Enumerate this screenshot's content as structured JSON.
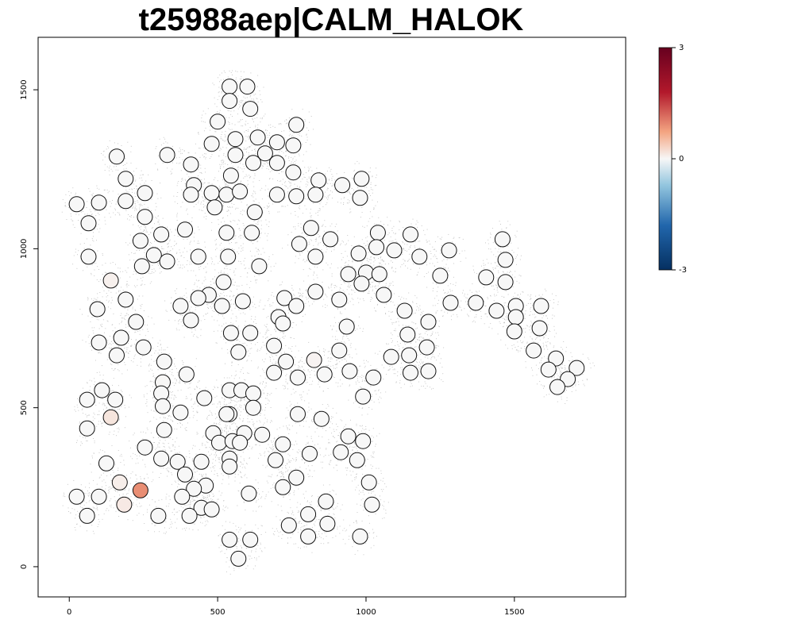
{
  "chart_data": {
    "type": "scatter",
    "title": "t25988aep|CALM_HALOK",
    "xlabel": "",
    "ylabel": "",
    "xlim": [
      -105,
      1875
    ],
    "ylim": [
      -95,
      1665
    ],
    "x_ticks": [
      0,
      500,
      1000,
      1500
    ],
    "y_ticks": [
      0,
      500,
      1000,
      1500
    ],
    "grid": false,
    "colorbar": {
      "min": -3,
      "max": 3,
      "ticks": [
        3,
        0,
        -3
      ],
      "low_color": "#053061",
      "mid_color": "#f7f7f7",
      "high_color": "#67001f",
      "placement": "right"
    },
    "background_points_color": "#c8c8c8",
    "spots": [
      [
        540,
        1510,
        0
      ],
      [
        600,
        1510,
        0
      ],
      [
        540,
        1465,
        0
      ],
      [
        610,
        1440,
        0
      ],
      [
        500,
        1400,
        0
      ],
      [
        765,
        1390,
        0
      ],
      [
        560,
        1345,
        0
      ],
      [
        635,
        1350,
        0
      ],
      [
        700,
        1335,
        0
      ],
      [
        755,
        1325,
        0
      ],
      [
        480,
        1330,
        0
      ],
      [
        330,
        1295,
        0
      ],
      [
        160,
        1290,
        0
      ],
      [
        560,
        1295,
        0
      ],
      [
        660,
        1300,
        0
      ],
      [
        620,
        1270,
        0
      ],
      [
        700,
        1270,
        0
      ],
      [
        410,
        1265,
        0
      ],
      [
        755,
        1240,
        0
      ],
      [
        545,
        1230,
        0
      ],
      [
        190,
        1220,
        0
      ],
      [
        840,
        1215,
        0
      ],
      [
        985,
        1220,
        0
      ],
      [
        420,
        1200,
        0
      ],
      [
        920,
        1200,
        0
      ],
      [
        255,
        1175,
        0
      ],
      [
        480,
        1175,
        0
      ],
      [
        530,
        1170,
        0
      ],
      [
        575,
        1180,
        0
      ],
      [
        700,
        1170,
        0
      ],
      [
        765,
        1165,
        0
      ],
      [
        830,
        1170,
        0
      ],
      [
        410,
        1170,
        0
      ],
      [
        980,
        1160,
        0
      ],
      [
        25,
        1140,
        0
      ],
      [
        100,
        1145,
        0
      ],
      [
        190,
        1150,
        0
      ],
      [
        490,
        1130,
        0
      ],
      [
        625,
        1115,
        0
      ],
      [
        255,
        1100,
        0
      ],
      [
        65,
        1080,
        0
      ],
      [
        390,
        1060,
        0
      ],
      [
        815,
        1065,
        0
      ],
      [
        310,
        1045,
        0
      ],
      [
        530,
        1050,
        0
      ],
      [
        615,
        1050,
        0
      ],
      [
        1040,
        1050,
        0
      ],
      [
        1460,
        1030,
        0
      ],
      [
        880,
        1030,
        0
      ],
      [
        1150,
        1045,
        0
      ],
      [
        240,
        1025,
        0
      ],
      [
        775,
        1015,
        0
      ],
      [
        1035,
        1005,
        0
      ],
      [
        1095,
        995,
        0
      ],
      [
        1280,
        995,
        0
      ],
      [
        1180,
        975,
        0
      ],
      [
        1470,
        965,
        0
      ],
      [
        65,
        975,
        0
      ],
      [
        285,
        980,
        0
      ],
      [
        435,
        975,
        0
      ],
      [
        535,
        975,
        0
      ],
      [
        830,
        975,
        0
      ],
      [
        975,
        985,
        0
      ],
      [
        330,
        960,
        0
      ],
      [
        245,
        945,
        0
      ],
      [
        640,
        945,
        0
      ],
      [
        940,
        920,
        0
      ],
      [
        1000,
        925,
        0
      ],
      [
        1045,
        920,
        0
      ],
      [
        1250,
        915,
        0
      ],
      [
        1405,
        910,
        0
      ],
      [
        140,
        900,
        0.06
      ],
      [
        520,
        895,
        0
      ],
      [
        985,
        890,
        0
      ],
      [
        1470,
        895,
        0
      ],
      [
        830,
        865,
        0
      ],
      [
        1060,
        855,
        0
      ],
      [
        470,
        855,
        0
      ],
      [
        435,
        845,
        0
      ],
      [
        190,
        840,
        0
      ],
      [
        585,
        835,
        0
      ],
      [
        725,
        845,
        0
      ],
      [
        910,
        840,
        0
      ],
      [
        1285,
        830,
        0
      ],
      [
        1370,
        830,
        0
      ],
      [
        375,
        820,
        0
      ],
      [
        515,
        820,
        0
      ],
      [
        765,
        820,
        0
      ],
      [
        1505,
        820,
        0
      ],
      [
        1590,
        820,
        0
      ],
      [
        95,
        810,
        0
      ],
      [
        1130,
        805,
        0
      ],
      [
        1440,
        805,
        0
      ],
      [
        1505,
        785,
        0
      ],
      [
        705,
        785,
        0
      ],
      [
        410,
        775,
        0
      ],
      [
        1210,
        770,
        0
      ],
      [
        225,
        770,
        0
      ],
      [
        720,
        765,
        0
      ],
      [
        935,
        755,
        0
      ],
      [
        1585,
        750,
        0
      ],
      [
        1500,
        740,
        0
      ],
      [
        545,
        735,
        0
      ],
      [
        610,
        735,
        0
      ],
      [
        175,
        720,
        0
      ],
      [
        1140,
        730,
        0
      ],
      [
        100,
        705,
        0
      ],
      [
        690,
        695,
        0
      ],
      [
        250,
        690,
        0
      ],
      [
        1205,
        690,
        0
      ],
      [
        1565,
        680,
        0
      ],
      [
        910,
        680,
        0
      ],
      [
        570,
        675,
        0
      ],
      [
        160,
        665,
        0
      ],
      [
        1145,
        665,
        0
      ],
      [
        1085,
        660,
        0
      ],
      [
        730,
        645,
        0
      ],
      [
        825,
        650,
        0.04
      ],
      [
        320,
        645,
        0
      ],
      [
        1640,
        655,
        0
      ],
      [
        1710,
        625,
        0
      ],
      [
        1615,
        620,
        0
      ],
      [
        1210,
        615,
        0
      ],
      [
        945,
        615,
        0
      ],
      [
        1150,
        610,
        0
      ],
      [
        690,
        610,
        0
      ],
      [
        860,
        605,
        0
      ],
      [
        395,
        605,
        0
      ],
      [
        1025,
        595,
        0
      ],
      [
        770,
        595,
        0
      ],
      [
        1680,
        590,
        0
      ],
      [
        315,
        580,
        0.01
      ],
      [
        1645,
        565,
        0
      ],
      [
        110,
        555,
        0
      ],
      [
        540,
        555,
        0
      ],
      [
        580,
        555,
        0
      ],
      [
        620,
        545,
        0
      ],
      [
        310,
        545,
        0
      ],
      [
        60,
        525,
        0
      ],
      [
        155,
        525,
        0
      ],
      [
        455,
        530,
        0
      ],
      [
        990,
        535,
        0
      ],
      [
        315,
        505,
        0
      ],
      [
        620,
        500,
        0
      ],
      [
        375,
        485,
        0
      ],
      [
        540,
        480,
        0
      ],
      [
        770,
        480,
        0
      ],
      [
        530,
        480,
        0
      ],
      [
        140,
        470,
        0.16
      ],
      [
        850,
        465,
        0
      ],
      [
        320,
        430,
        0
      ],
      [
        60,
        435,
        0
      ],
      [
        485,
        420,
        0
      ],
      [
        590,
        420,
        0
      ],
      [
        650,
        415,
        0
      ],
      [
        940,
        410,
        0
      ],
      [
        990,
        395,
        0
      ],
      [
        505,
        390,
        0
      ],
      [
        550,
        395,
        0
      ],
      [
        575,
        390,
        0
      ],
      [
        720,
        385,
        0
      ],
      [
        255,
        375,
        0
      ],
      [
        915,
        360,
        0
      ],
      [
        810,
        355,
        0
      ],
      [
        540,
        340,
        0
      ],
      [
        310,
        340,
        0
      ],
      [
        970,
        335,
        0
      ],
      [
        695,
        335,
        0
      ],
      [
        365,
        330,
        0
      ],
      [
        445,
        330,
        0
      ],
      [
        125,
        325,
        0
      ],
      [
        540,
        315,
        0
      ],
      [
        390,
        290,
        0
      ],
      [
        765,
        280,
        0
      ],
      [
        170,
        265,
        0.08
      ],
      [
        1010,
        265,
        0
      ],
      [
        460,
        255,
        0
      ],
      [
        420,
        245,
        0
      ],
      [
        720,
        250,
        0
      ],
      [
        240,
        240,
        0.9
      ],
      [
        25,
        220,
        0
      ],
      [
        100,
        220,
        0
      ],
      [
        380,
        220,
        0
      ],
      [
        605,
        230,
        0
      ],
      [
        865,
        205,
        0
      ],
      [
        185,
        195,
        0.12
      ],
      [
        1020,
        195,
        0
      ],
      [
        445,
        185,
        0
      ],
      [
        480,
        180,
        0
      ],
      [
        300,
        160,
        0
      ],
      [
        60,
        160,
        0
      ],
      [
        405,
        160,
        0
      ],
      [
        805,
        165,
        0
      ],
      [
        740,
        130,
        0
      ],
      [
        870,
        135,
        0
      ],
      [
        540,
        85,
        0
      ],
      [
        610,
        85,
        0
      ],
      [
        805,
        95,
        0
      ],
      [
        980,
        95,
        0
      ],
      [
        570,
        25,
        0
      ]
    ]
  }
}
